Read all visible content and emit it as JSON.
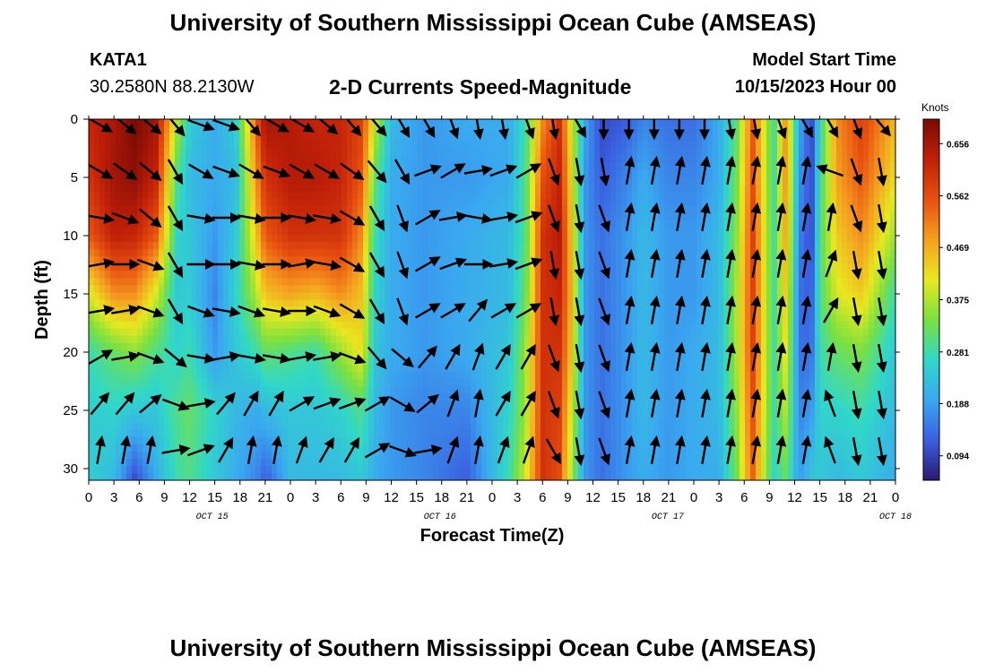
{
  "header": {
    "title": "University of Southern Mississippi Ocean Cube (AMSEAS)",
    "station_id": "KATA1",
    "station_coords": "30.2580N  88.2130W",
    "subtitle": "2-D Currents Speed-Magnitude",
    "start_label": "Model Start Time",
    "start_value": "10/15/2023 Hour 00"
  },
  "footer": {
    "title": "University of Southern Mississippi Ocean Cube (AMSEAS)"
  },
  "chart_data": {
    "type": "heatmap",
    "title": "2-D Currents Speed-Magnitude",
    "xlabel": "Forecast Time(Z)",
    "ylabel": "Depth (ft)",
    "x_ticks": [
      "0",
      "3",
      "6",
      "9",
      "12",
      "15",
      "18",
      "21",
      "0",
      "3",
      "6",
      "9",
      "12",
      "15",
      "18",
      "21",
      "0",
      "3",
      "6",
      "9",
      "12",
      "15",
      "18",
      "21",
      "0",
      "3",
      "6",
      "9",
      "12",
      "15",
      "18",
      "21",
      "0"
    ],
    "date_labels": [
      {
        "label": "OCT 15",
        "hour": 39
      },
      {
        "label": "OCT 16",
        "hour": 111
      },
      {
        "label": "OCT 17",
        "hour": 183
      },
      {
        "label": "OCT 18",
        "hour": 255
      }
    ],
    "xlim_hours": [
      0,
      96
    ],
    "y_ticks": [
      0,
      5,
      10,
      15,
      20,
      25,
      30
    ],
    "ylim_ft": [
      0,
      31
    ],
    "colorbar": {
      "label": "Knots",
      "ticks": [
        0.656,
        0.562,
        0.469,
        0.375,
        0.281,
        0.188,
        0.094
      ],
      "range": [
        0.05,
        0.7
      ],
      "colors": [
        "#2a1a6e",
        "#3a5ee0",
        "#3aa8f0",
        "#30d8c8",
        "#7ae040",
        "#e8e820",
        "#f5a020",
        "#e85010",
        "#c02008",
        "#7a0a04"
      ]
    },
    "speed_profile_knots": [
      [
        0,
        [
          0.62,
          0.6,
          0.55,
          0.4,
          0.28,
          0.25,
          0.25
        ]
      ],
      [
        3,
        [
          0.65,
          0.66,
          0.63,
          0.5,
          0.32,
          0.26,
          0.22
        ]
      ],
      [
        5.5,
        [
          0.7,
          0.68,
          0.62,
          0.5,
          0.35,
          0.24,
          0.1
        ]
      ],
      [
        8,
        [
          0.66,
          0.62,
          0.55,
          0.4,
          0.3,
          0.24,
          0.2
        ]
      ],
      [
        10.5,
        [
          0.38,
          0.3,
          0.26,
          0.24,
          0.26,
          0.3,
          0.28
        ]
      ],
      [
        12,
        [
          0.25,
          0.22,
          0.24,
          0.25,
          0.28,
          0.32,
          0.3
        ]
      ],
      [
        15,
        [
          0.2,
          0.2,
          0.18,
          0.16,
          0.18,
          0.26,
          0.24
        ]
      ],
      [
        17.5,
        [
          0.25,
          0.22,
          0.24,
          0.26,
          0.24,
          0.22,
          0.2
        ]
      ],
      [
        20,
        [
          0.55,
          0.5,
          0.45,
          0.38,
          0.28,
          0.2,
          0.16
        ]
      ],
      [
        21,
        [
          0.66,
          0.6,
          0.55,
          0.45,
          0.32,
          0.22,
          0.12
        ]
      ],
      [
        24,
        [
          0.64,
          0.64,
          0.6,
          0.48,
          0.3,
          0.24,
          0.22
        ]
      ],
      [
        27,
        [
          0.62,
          0.64,
          0.6,
          0.46,
          0.28,
          0.24,
          0.22
        ]
      ],
      [
        30,
        [
          0.62,
          0.62,
          0.6,
          0.5,
          0.36,
          0.26,
          0.22
        ]
      ],
      [
        32.5,
        [
          0.58,
          0.55,
          0.5,
          0.45,
          0.42,
          0.3,
          0.24
        ]
      ],
      [
        34,
        [
          0.4,
          0.32,
          0.28,
          0.26,
          0.24,
          0.22,
          0.2
        ]
      ],
      [
        36,
        [
          0.22,
          0.2,
          0.2,
          0.2,
          0.2,
          0.18,
          0.18
        ]
      ],
      [
        40,
        [
          0.18,
          0.18,
          0.18,
          0.18,
          0.18,
          0.16,
          0.16
        ]
      ],
      [
        45,
        [
          0.2,
          0.18,
          0.2,
          0.2,
          0.2,
          0.16,
          0.12
        ]
      ],
      [
        50,
        [
          0.2,
          0.2,
          0.22,
          0.22,
          0.24,
          0.26,
          0.28
        ]
      ],
      [
        52,
        [
          0.28,
          0.3,
          0.3,
          0.32,
          0.36,
          0.36,
          0.4
        ]
      ],
      [
        54,
        [
          0.5,
          0.56,
          0.6,
          0.6,
          0.6,
          0.6,
          0.6
        ]
      ],
      [
        56,
        [
          0.6,
          0.62,
          0.64,
          0.62,
          0.6,
          0.58,
          0.56
        ]
      ],
      [
        57.5,
        [
          0.4,
          0.42,
          0.44,
          0.46,
          0.44,
          0.4,
          0.36
        ]
      ],
      [
        59,
        [
          0.2,
          0.18,
          0.18,
          0.18,
          0.18,
          0.18,
          0.18
        ]
      ],
      [
        61,
        [
          0.1,
          0.12,
          0.14,
          0.14,
          0.14,
          0.14,
          0.14
        ]
      ],
      [
        64,
        [
          0.12,
          0.16,
          0.18,
          0.18,
          0.18,
          0.18,
          0.18
        ]
      ],
      [
        66,
        [
          0.16,
          0.2,
          0.22,
          0.22,
          0.22,
          0.22,
          0.2
        ]
      ],
      [
        69,
        [
          0.14,
          0.16,
          0.18,
          0.18,
          0.18,
          0.18,
          0.18
        ]
      ],
      [
        72,
        [
          0.14,
          0.16,
          0.18,
          0.18,
          0.2,
          0.2,
          0.2
        ]
      ],
      [
        75,
        [
          0.2,
          0.2,
          0.22,
          0.22,
          0.22,
          0.22,
          0.2
        ]
      ],
      [
        77,
        [
          0.3,
          0.32,
          0.34,
          0.36,
          0.36,
          0.34,
          0.32
        ]
      ],
      [
        79,
        [
          0.55,
          0.56,
          0.58,
          0.58,
          0.58,
          0.56,
          0.54
        ]
      ],
      [
        80,
        [
          0.45,
          0.45,
          0.46,
          0.46,
          0.46,
          0.44,
          0.42
        ]
      ],
      [
        81.5,
        [
          0.28,
          0.28,
          0.28,
          0.28,
          0.28,
          0.28,
          0.26
        ]
      ],
      [
        83,
        [
          0.5,
          0.5,
          0.48,
          0.45,
          0.42,
          0.38,
          0.32
        ]
      ],
      [
        84.5,
        [
          0.2,
          0.18,
          0.16,
          0.14,
          0.14,
          0.16,
          0.18
        ]
      ],
      [
        86,
        [
          0.1,
          0.1,
          0.1,
          0.12,
          0.14,
          0.18,
          0.24
        ]
      ],
      [
        87,
        [
          0.26,
          0.28,
          0.3,
          0.3,
          0.28,
          0.26,
          0.24
        ]
      ],
      [
        89,
        [
          0.5,
          0.48,
          0.44,
          0.4,
          0.32,
          0.26,
          0.22
        ]
      ],
      [
        92,
        [
          0.58,
          0.55,
          0.5,
          0.44,
          0.34,
          0.28,
          0.24
        ]
      ],
      [
        96,
        [
          0.46,
          0.42,
          0.36,
          0.28,
          0.24,
          0.22,
          0.2
        ]
      ]
    ],
    "speed_profile_depths_ft": [
      0,
      5,
      10,
      15,
      20,
      25,
      31
    ],
    "vectors": {
      "hours": [
        0,
        3,
        6,
        9,
        12,
        15,
        18,
        21,
        24,
        27,
        30,
        33,
        36,
        39,
        42,
        45,
        48,
        51,
        54,
        57,
        60,
        63,
        66,
        69,
        72,
        75,
        78,
        81,
        84,
        87,
        90,
        93,
        96
      ],
      "depths_ft": [
        0,
        4,
        8,
        12,
        16,
        20,
        24,
        28
      ],
      "direction_deg": [
        [
          120,
          130,
          130,
          140,
          110,
          110,
          140,
          120,
          120,
          130,
          140,
          140,
          150,
          150,
          160,
          170,
          170,
          160,
          170,
          150,
          180,
          180,
          180,
          180,
          180,
          170,
          170,
          160,
          150,
          150,
          160,
          140,
          140
        ],
        [
          120,
          125,
          130,
          150,
          120,
          110,
          120,
          110,
          120,
          120,
          125,
          140,
          150,
          70,
          60,
          80,
          70,
          60,
          160,
          170,
          170,
          10,
          10,
          10,
          10,
          10,
          10,
          10,
          10,
          290,
          160,
          170,
          170
        ],
        [
          100,
          110,
          130,
          150,
          100,
          90,
          100,
          90,
          100,
          100,
          120,
          150,
          160,
          60,
          80,
          100,
          80,
          70,
          160,
          170,
          160,
          10,
          10,
          10,
          10,
          10,
          10,
          10,
          10,
          10,
          160,
          170,
          170
        ],
        [
          80,
          90,
          110,
          150,
          90,
          90,
          100,
          90,
          80,
          100,
          120,
          150,
          160,
          60,
          70,
          90,
          80,
          70,
          170,
          170,
          160,
          10,
          10,
          10,
          10,
          10,
          10,
          10,
          10,
          20,
          170,
          170,
          170
        ],
        [
          80,
          80,
          110,
          150,
          110,
          100,
          110,
          100,
          90,
          110,
          120,
          150,
          160,
          60,
          60,
          40,
          60,
          60,
          170,
          170,
          160,
          10,
          10,
          10,
          10,
          10,
          10,
          10,
          10,
          30,
          170,
          170,
          170
        ],
        [
          60,
          80,
          110,
          130,
          100,
          80,
          100,
          100,
          80,
          80,
          110,
          140,
          130,
          40,
          30,
          20,
          30,
          30,
          160,
          170,
          160,
          10,
          10,
          10,
          10,
          10,
          10,
          10,
          10,
          10,
          170,
          170,
          170
        ],
        [
          40,
          40,
          50,
          110,
          80,
          40,
          30,
          30,
          60,
          70,
          70,
          60,
          120,
          50,
          20,
          10,
          30,
          30,
          160,
          170,
          160,
          10,
          10,
          10,
          10,
          10,
          10,
          10,
          10,
          340,
          170,
          170,
          170
        ],
        [
          10,
          10,
          10,
          80,
          70,
          30,
          10,
          10,
          20,
          30,
          30,
          60,
          110,
          80,
          20,
          10,
          20,
          20,
          150,
          170,
          160,
          10,
          10,
          10,
          10,
          10,
          10,
          10,
          10,
          340,
          170,
          170,
          170
        ]
      ]
    }
  }
}
